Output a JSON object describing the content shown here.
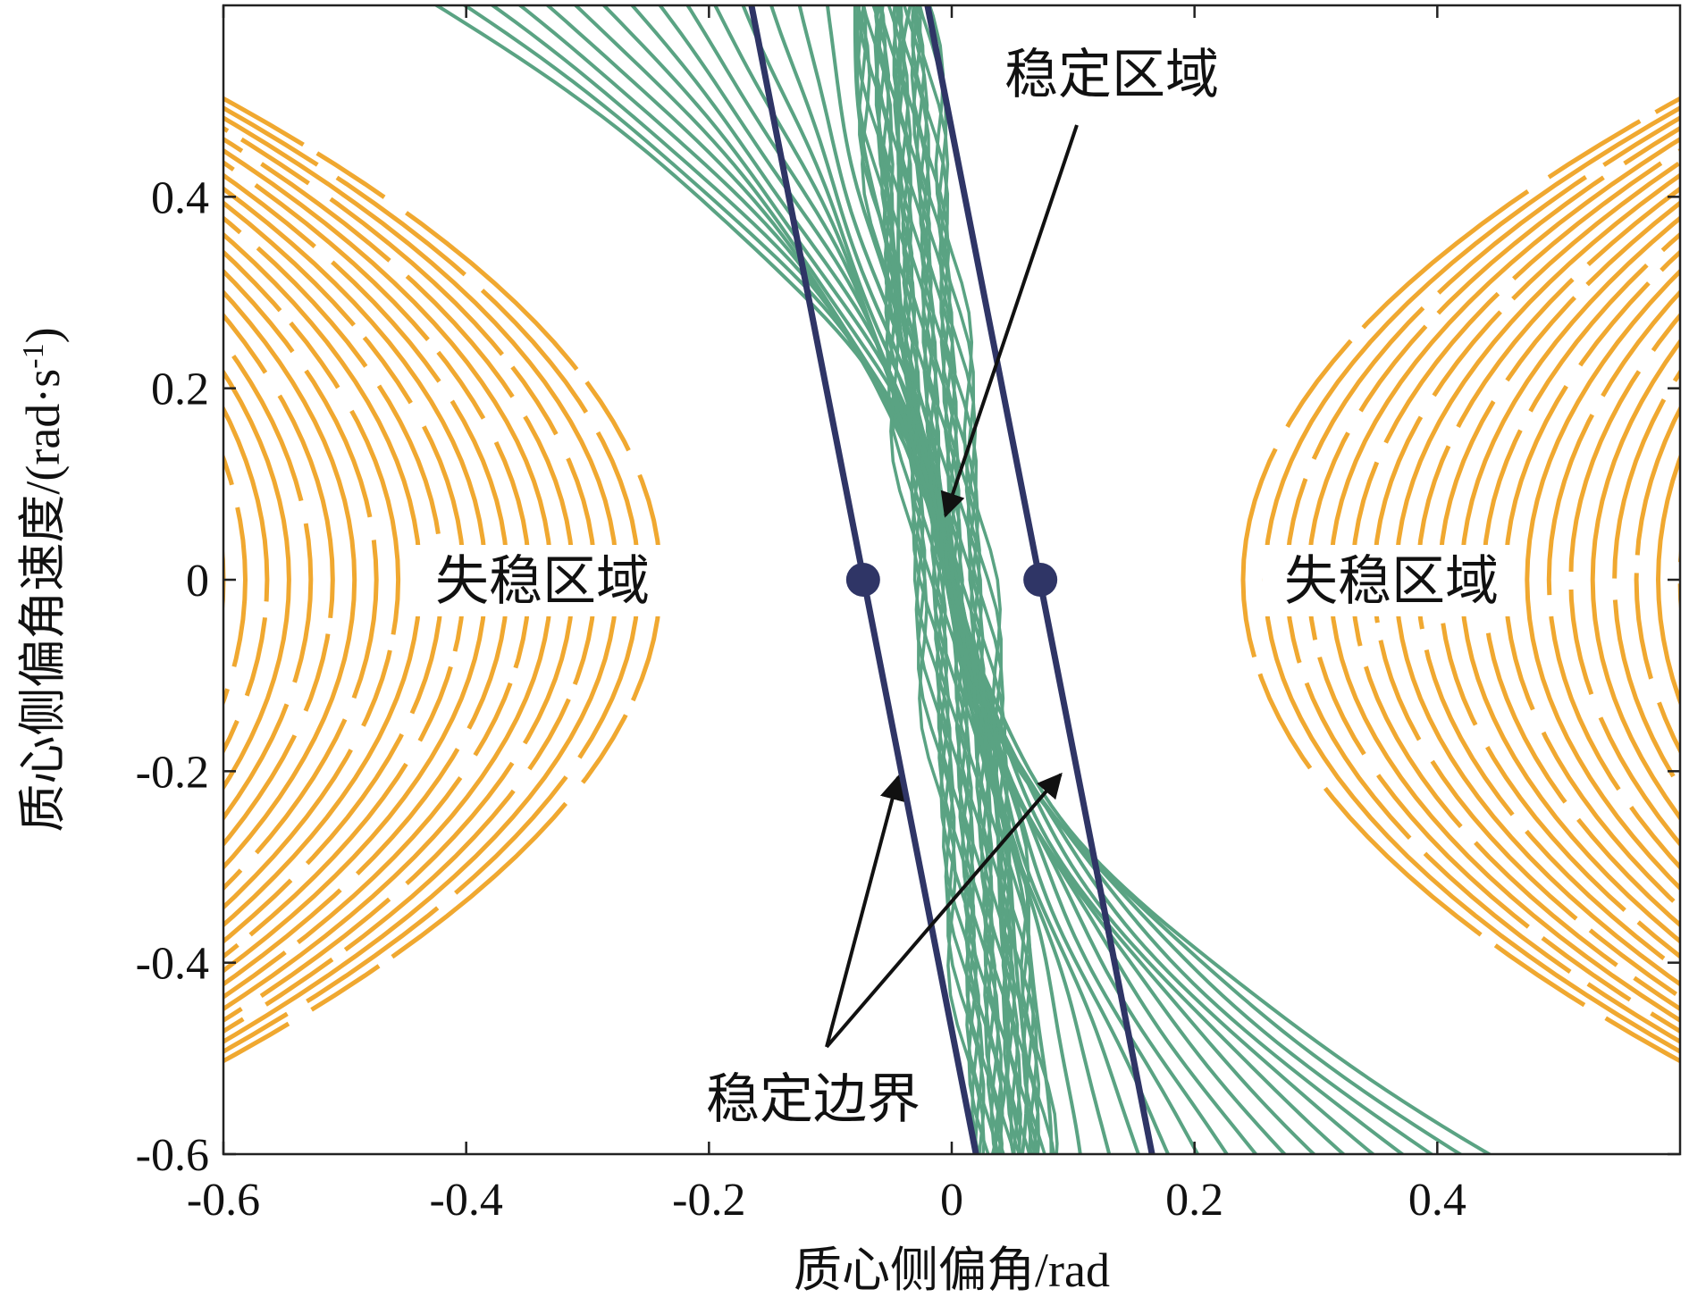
{
  "chart_data": {
    "type": "phase-portrait",
    "xlabel": "质心侧偏角/rad",
    "ylabel_main": "质心侧偏角速度/(rad·s",
    "ylabel_sup": "-1",
    "ylabel_close": ")",
    "xlim": [
      -0.6,
      0.6
    ],
    "ylim": [
      -0.6,
      0.6
    ],
    "xticks": [
      -0.6,
      -0.4,
      -0.2,
      0,
      0.2,
      0.4
    ],
    "yticks": [
      -0.6,
      -0.4,
      -0.2,
      0,
      0.2,
      0.4
    ],
    "xtick_labels": [
      "-0.6",
      "-0.4",
      "-0.2",
      "0",
      "0.2",
      "0.4"
    ],
    "ytick_labels": [
      "-0.6",
      "-0.4",
      "-0.2",
      "0",
      "0.2",
      "0.4"
    ],
    "boundaries": [
      {
        "points": [
          [
            -0.165,
            0.6
          ],
          [
            0.02,
            -0.6
          ]
        ]
      },
      {
        "points": [
          [
            -0.02,
            0.6
          ],
          [
            0.165,
            -0.6
          ]
        ]
      }
    ],
    "equilibrium_points": [
      [
        -0.073,
        0
      ],
      [
        0.073,
        0
      ]
    ],
    "annotations": [
      {
        "text": "稳定区域",
        "x": 0.08,
        "y": 0.54
      },
      {
        "text": "失稳区域",
        "x": -0.335,
        "y": 0
      },
      {
        "text": "失稳区域",
        "x": 0.37,
        "y": 0
      },
      {
        "text": "稳定边界",
        "x": -0.105,
        "y": -0.54
      }
    ],
    "colors": {
      "unstable_trajectories": "#f0a830",
      "stable_trajectories": "#5aa383",
      "boundary": "#2f3566",
      "arrow": "#111111"
    }
  }
}
